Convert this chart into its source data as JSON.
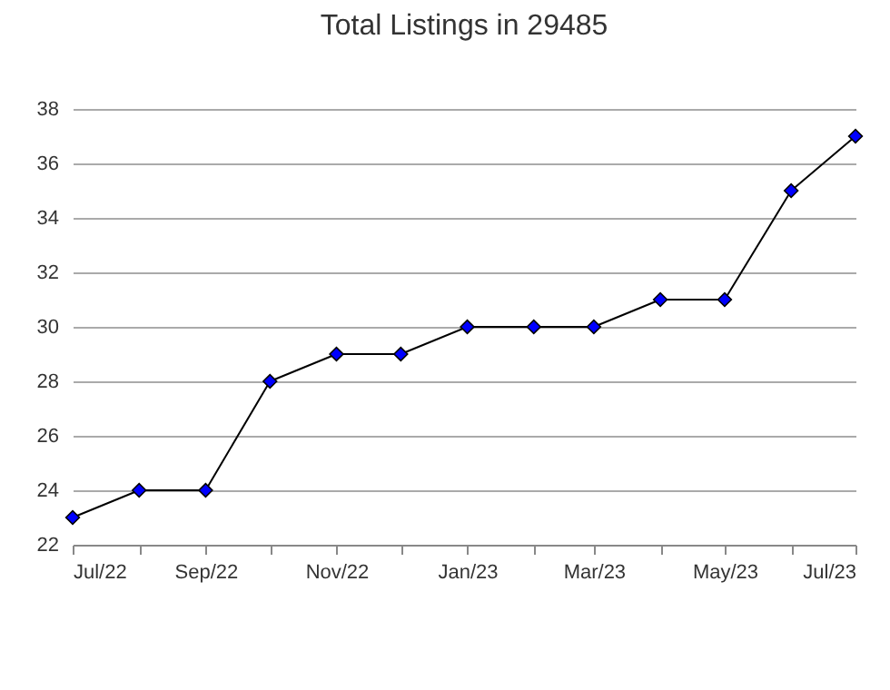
{
  "chart_data": {
    "type": "line",
    "title": "Total Listings in 29485",
    "x": [
      "2022-07",
      "2022-08",
      "2022-09",
      "2022-10",
      "2022-11",
      "2022-12",
      "2023-01",
      "2023-02",
      "2023-03",
      "2023-04",
      "2023-05",
      "2023-06",
      "2023-07"
    ],
    "series": [
      {
        "color": "#0000ff",
        "values": [
          23,
          24,
          24,
          28,
          29,
          29,
          30,
          30,
          30,
          31,
          31,
          35,
          37
        ]
      }
    ],
    "xlim": [
      "2022-07",
      "2023-07"
    ],
    "xticks": [
      {
        "value": "2022-07",
        "label": "Jul/22"
      },
      {
        "value": "2022-08",
        "label": null
      },
      {
        "value": "2022-09",
        "label": "Sep/22"
      },
      {
        "value": "2022-10",
        "label": null
      },
      {
        "value": "2022-11",
        "label": "Nov/22"
      },
      {
        "value": "2022-12",
        "label": null
      },
      {
        "value": "2023-01",
        "label": "Jan/23"
      },
      {
        "value": "2023-02",
        "label": null
      },
      {
        "value": "2023-03",
        "label": "Mar/23"
      },
      {
        "value": "2023-04",
        "label": null
      },
      {
        "value": "2023-05",
        "label": "May/23"
      },
      {
        "value": "2023-06",
        "label": null
      },
      {
        "value": "2023-07",
        "label": "Jul/23"
      }
    ],
    "ylim": [
      22,
      38
    ],
    "yticks": [
      22,
      24,
      26,
      28,
      30,
      32,
      34,
      36,
      38
    ],
    "grid": "y",
    "marker": "diamond",
    "line_style": "solid"
  }
}
